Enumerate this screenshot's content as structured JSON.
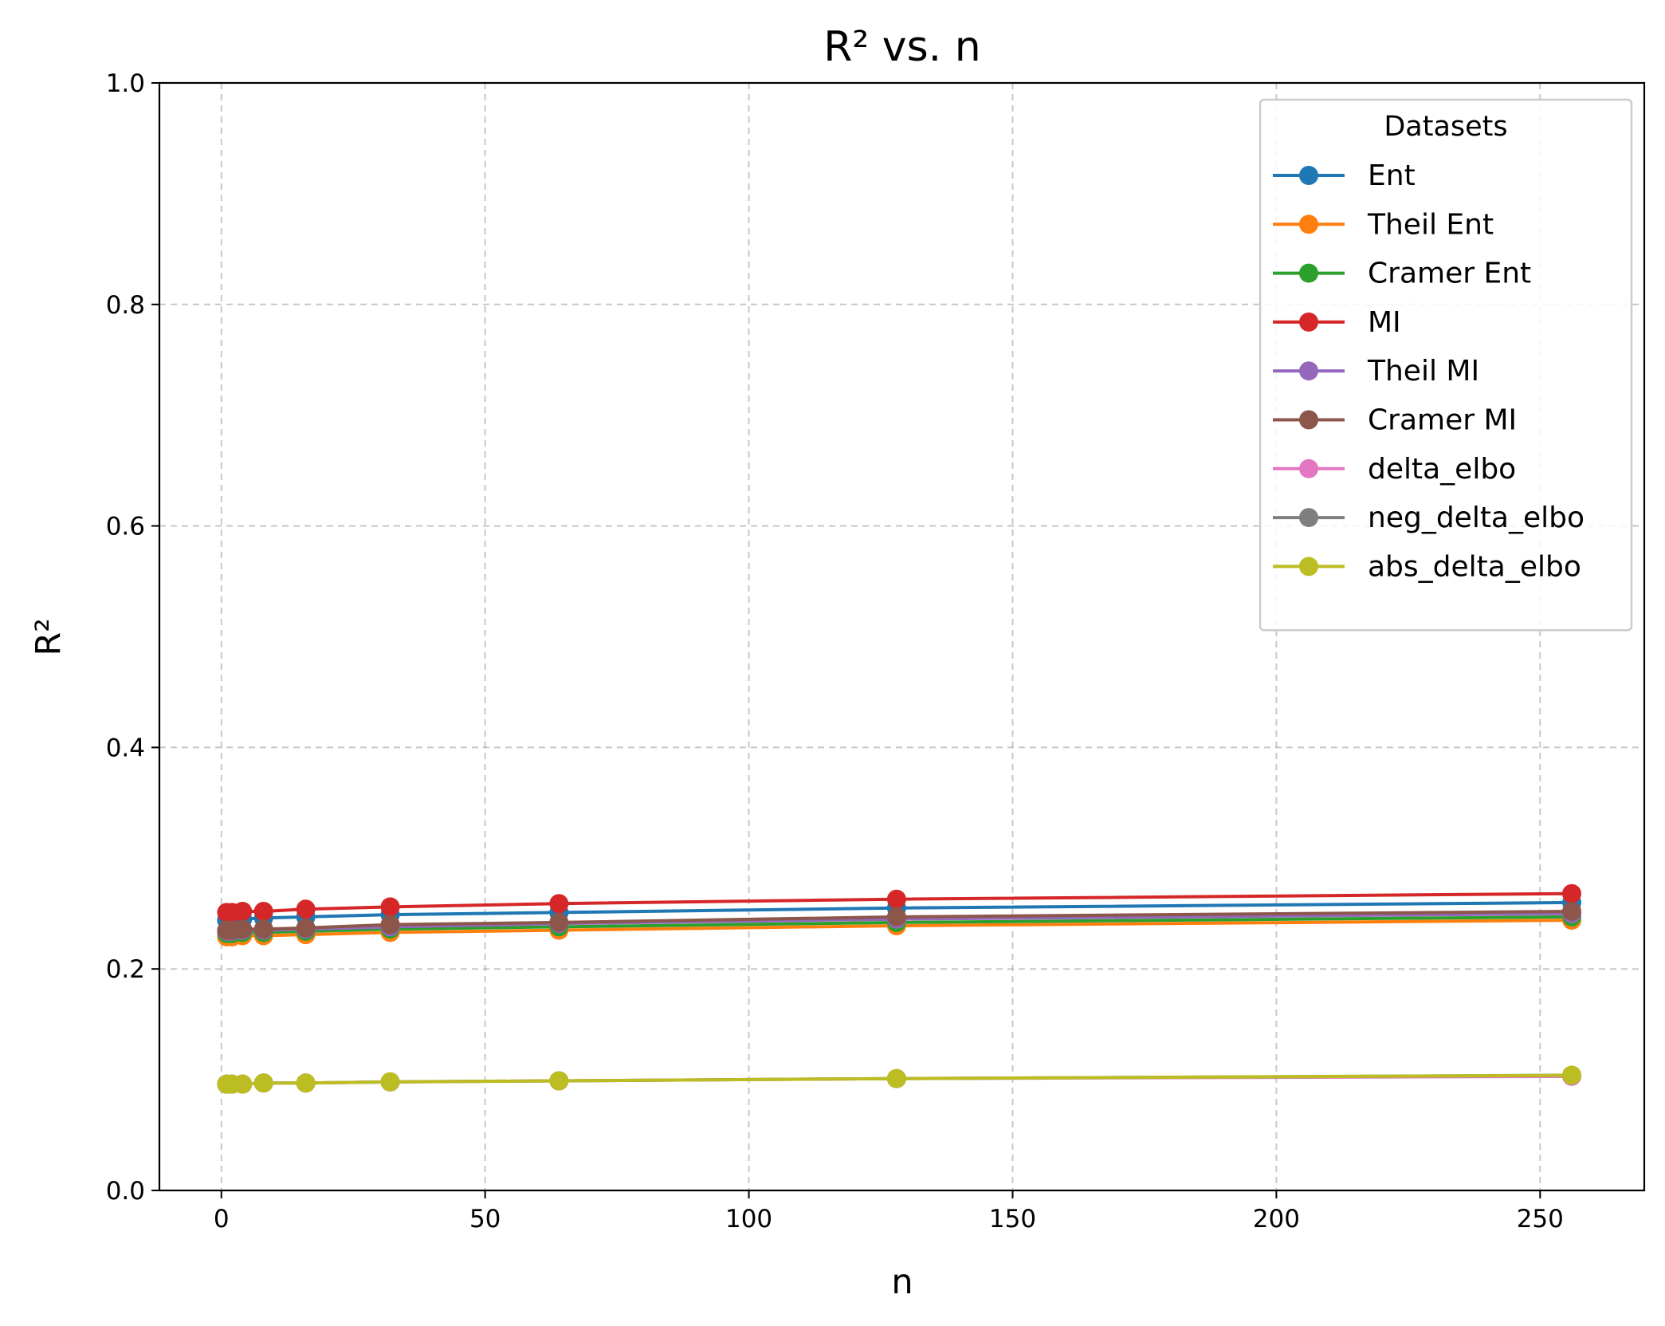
{
  "chart_data": {
    "type": "line",
    "title": "R² vs. n",
    "xlabel": "n",
    "ylabel": "R²",
    "xlim": [
      -11.75,
      269.75
    ],
    "ylim": [
      0.0,
      1.0
    ],
    "xticks": [
      0,
      50,
      100,
      150,
      200,
      250
    ],
    "yticks": [
      0.0,
      0.2,
      0.4,
      0.6,
      0.8,
      1.0
    ],
    "xtick_labels": [
      "0",
      "50",
      "100",
      "150",
      "200",
      "250"
    ],
    "ytick_labels": [
      "0.0",
      "0.2",
      "0.4",
      "0.6",
      "0.8",
      "1.0"
    ],
    "grid": true,
    "legend": {
      "title": "Datasets",
      "position": "top-right"
    },
    "x": [
      1,
      2,
      4,
      8,
      16,
      32,
      64,
      128,
      256
    ],
    "series": [
      {
        "name": "Ent",
        "color": "#1f77b4",
        "values": [
          0.244,
          0.244,
          0.245,
          0.246,
          0.247,
          0.249,
          0.251,
          0.255,
          0.26
        ]
      },
      {
        "name": "Theil Ent",
        "color": "#ff7f0e",
        "values": [
          0.229,
          0.229,
          0.23,
          0.23,
          0.231,
          0.233,
          0.235,
          0.239,
          0.244
        ]
      },
      {
        "name": "Cramer Ent",
        "color": "#2ca02c",
        "values": [
          0.232,
          0.232,
          0.233,
          0.233,
          0.234,
          0.236,
          0.238,
          0.242,
          0.247
        ]
      },
      {
        "name": "MI",
        "color": "#d62728",
        "values": [
          0.251,
          0.251,
          0.252,
          0.252,
          0.254,
          0.256,
          0.259,
          0.263,
          0.268
        ]
      },
      {
        "name": "Theil MI",
        "color": "#9467bd",
        "values": [
          0.234,
          0.234,
          0.235,
          0.235,
          0.236,
          0.238,
          0.241,
          0.245,
          0.25
        ]
      },
      {
        "name": "Cramer MI",
        "color": "#8c564b",
        "values": [
          0.235,
          0.235,
          0.236,
          0.236,
          0.237,
          0.24,
          0.242,
          0.247,
          0.252
        ]
      },
      {
        "name": "delta_elbo",
        "color": "#e377c2",
        "values": [
          0.096,
          0.096,
          0.096,
          0.097,
          0.097,
          0.098,
          0.099,
          0.101,
          0.103
        ]
      },
      {
        "name": "neg_delta_elbo",
        "color": "#7f7f7f",
        "values": [
          0.096,
          0.096,
          0.096,
          0.097,
          0.097,
          0.098,
          0.099,
          0.101,
          0.104
        ]
      },
      {
        "name": "abs_delta_elbo",
        "color": "#bcbd22",
        "values": [
          0.096,
          0.096,
          0.096,
          0.097,
          0.097,
          0.098,
          0.099,
          0.101,
          0.104
        ]
      }
    ]
  }
}
